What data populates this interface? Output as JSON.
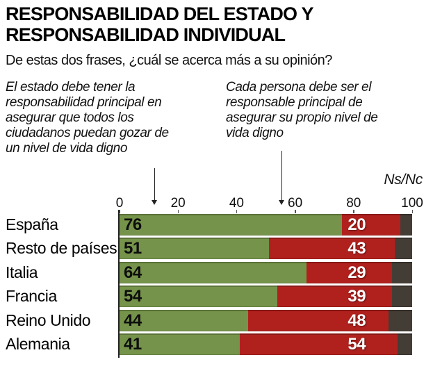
{
  "title": {
    "lines": [
      "RESPONSABILIDAD DEL ESTADO Y",
      "RESPONSABILIDAD INDIVIDUAL"
    ]
  },
  "subtitle": "De estas dos frases, ¿cuál se acerca más a su opinión?",
  "annotations": {
    "left": {
      "lines": [
        "El estado debe tener la",
        "responsabilidad principal en",
        "asegurar que todos los",
        "ciudadanos puedan gozar de",
        "un nivel de vida digno"
      ]
    },
    "right": {
      "lines": [
        "Cada persona debe ser el",
        "responsable principal de",
        "asegurar su propio nivel de",
        "vida digno"
      ]
    },
    "nsnc_label": "Ns/Nc"
  },
  "colors": {
    "state_green": "#75934a",
    "individual_red": "#b0211e",
    "nsnc_gray": "#443d36",
    "text_black": "#000000",
    "background": "#ffffff"
  },
  "chart_data": {
    "type": "bar",
    "orientation": "horizontal",
    "stacked": true,
    "title": "RESPONSABILIDAD DEL ESTADO Y RESPONSABILIDAD INDIVIDUAL",
    "subtitle": "De estas dos frases, ¿cuál se acerca más a su opinión?",
    "categories": [
      "España",
      "Resto de países",
      "Italia",
      "Francia",
      "Reino Unido",
      "Alemania"
    ],
    "series": [
      {
        "name": "El estado debe tener la responsabilidad principal en asegurar que todos los ciudadanos puedan gozar de un nivel de vida digno",
        "color": "#75934a",
        "values": [
          76,
          51,
          64,
          54,
          44,
          41
        ],
        "show_labels": true
      },
      {
        "name": "Cada persona debe ser el responsable principal de asegurar su propio nivel de vida digno",
        "color": "#b0211e",
        "values": [
          20,
          43,
          29,
          39,
          48,
          54
        ],
        "show_labels": true
      },
      {
        "name": "Ns/Nc",
        "color": "#443d36",
        "values": [
          4,
          6,
          7,
          7,
          8,
          5
        ],
        "show_labels": false
      }
    ],
    "xlim": [
      0,
      100
    ],
    "x_ticks": [
      0,
      20,
      40,
      60,
      80,
      100
    ],
    "grid": false,
    "legend_position": "annotations-above-with-arrows"
  }
}
